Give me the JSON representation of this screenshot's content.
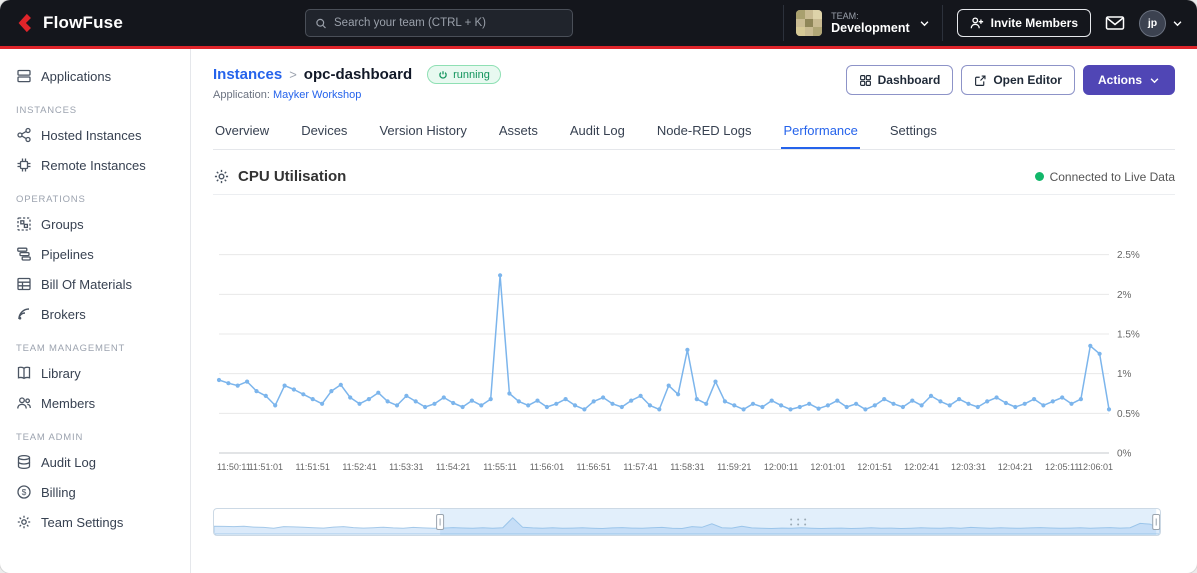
{
  "colors": {
    "brand_red": "#E0242A",
    "primary_purple": "#5046B5",
    "link_blue": "#2563EB",
    "status_green": "#12B76A",
    "chart_line": "#7CB5EC"
  },
  "icons": {
    "logo": "flowfuse-chevron",
    "search": "magnifier",
    "invite": "user-plus",
    "messages": "envelope",
    "team_selector": "chevron-down",
    "status_running": "power",
    "dashboard": "grid",
    "open_editor": "open-window",
    "actions": "chevron-down",
    "chart_header": "gear",
    "live_status": "green-dot"
  },
  "topbar": {
    "logo_text": "FlowFuse",
    "search_placeholder": "Search your team (CTRL + K)",
    "team_label": "TEAM:",
    "team_name": "Development",
    "invite_label": "Invite Members",
    "avatar_initials": "jp"
  },
  "sidebar": {
    "top_items": [
      {
        "label": "Applications"
      }
    ],
    "sections": [
      {
        "title": "INSTANCES",
        "items": [
          {
            "label": "Hosted Instances"
          },
          {
            "label": "Remote Instances"
          }
        ]
      },
      {
        "title": "OPERATIONS",
        "items": [
          {
            "label": "Groups"
          },
          {
            "label": "Pipelines"
          },
          {
            "label": "Bill Of Materials"
          },
          {
            "label": "Brokers"
          }
        ]
      },
      {
        "title": "TEAM MANAGEMENT",
        "items": [
          {
            "label": "Library"
          },
          {
            "label": "Members"
          }
        ]
      },
      {
        "title": "TEAM ADMIN",
        "items": [
          {
            "label": "Audit Log"
          },
          {
            "label": "Billing"
          },
          {
            "label": "Team Settings"
          }
        ]
      }
    ]
  },
  "page": {
    "breadcrumb_parent": "Instances",
    "breadcrumb_sep": ">",
    "breadcrumb_current": "opc-dashboard",
    "status_badge": "running",
    "application_label": "Application:",
    "application_name": "Mayker Workshop",
    "dashboard_button": "Dashboard",
    "open_editor_button": "Open Editor",
    "actions_button": "Actions",
    "tabs": [
      "Overview",
      "Devices",
      "Version History",
      "Assets",
      "Audit Log",
      "Node-RED Logs",
      "Performance",
      "Settings"
    ],
    "active_tab": "Performance"
  },
  "chart": {
    "title": "CPU Utilisation",
    "live_status": "Connected to Live Data"
  },
  "chart_data": {
    "type": "line",
    "title": "CPU Utilisation",
    "unit": "%",
    "ylim": [
      0,
      3
    ],
    "y_tick_values": [
      0,
      0.5,
      1,
      1.5,
      2,
      2.5
    ],
    "y_ticks": [
      "0%",
      "0.5%",
      "1%",
      "1.5%",
      "2%",
      "2.5%"
    ],
    "x_tick_every": 5,
    "x_tick_labels": [
      "11:50:11",
      "11:51:01",
      "11:51:51",
      "11:52:41",
      "11:53:31",
      "11:54:21",
      "11:55:11",
      "11:56:01",
      "11:56:51",
      "11:57:41",
      "11:58:31",
      "11:59:21",
      "12:00:11",
      "12:01:01",
      "12:01:51",
      "12:02:41",
      "12:03:31",
      "12:04:21",
      "12:05:11",
      "12:06:01"
    ],
    "grid": true,
    "legend_position": "none",
    "y_axis_position": "right",
    "line_color": "#7CB5EC",
    "series": [
      {
        "name": "CPU Utilisation",
        "values": [
          0.92,
          0.88,
          0.85,
          0.9,
          0.78,
          0.72,
          0.6,
          0.85,
          0.8,
          0.74,
          0.68,
          0.62,
          0.78,
          0.86,
          0.7,
          0.62,
          0.68,
          0.76,
          0.65,
          0.6,
          0.72,
          0.65,
          0.58,
          0.62,
          0.7,
          0.63,
          0.58,
          0.66,
          0.6,
          0.68,
          2.24,
          0.75,
          0.65,
          0.6,
          0.66,
          0.58,
          0.62,
          0.68,
          0.6,
          0.55,
          0.65,
          0.7,
          0.62,
          0.58,
          0.66,
          0.72,
          0.6,
          0.55,
          0.85,
          0.74,
          1.3,
          0.68,
          0.62,
          0.9,
          0.65,
          0.6,
          0.55,
          0.62,
          0.58,
          0.66,
          0.6,
          0.55,
          0.58,
          0.62,
          0.56,
          0.6,
          0.66,
          0.58,
          0.62,
          0.55,
          0.6,
          0.68,
          0.62,
          0.58,
          0.66,
          0.6,
          0.72,
          0.65,
          0.6,
          0.68,
          0.62,
          0.58,
          0.65,
          0.7,
          0.63,
          0.58,
          0.62,
          0.68,
          0.6,
          0.65,
          0.7,
          0.62,
          0.68,
          1.35,
          1.25,
          0.55
        ]
      }
    ],
    "navigator": {
      "selection_start": 0.239,
      "selection_end": 0.996
    }
  }
}
